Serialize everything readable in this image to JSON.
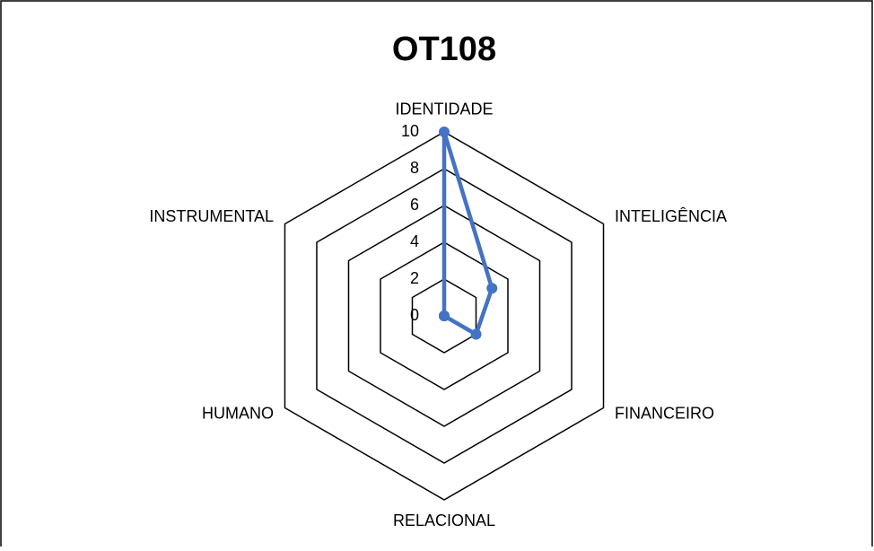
{
  "chart_data": {
    "type": "radar",
    "title": "OT108",
    "categories": [
      "IDENTIDADE",
      "INTELIGÊNCIA",
      "FINANCEIRO",
      "RELACIONAL",
      "HUMANO",
      "INSTRUMENTAL"
    ],
    "series": [
      {
        "name": "OT108",
        "color": "#4472c4",
        "values": [
          10,
          3,
          2,
          0,
          0,
          0
        ]
      }
    ],
    "ylim": [
      0,
      10
    ],
    "yticks": [
      0,
      2,
      4,
      6,
      8,
      10
    ],
    "grid": true
  }
}
